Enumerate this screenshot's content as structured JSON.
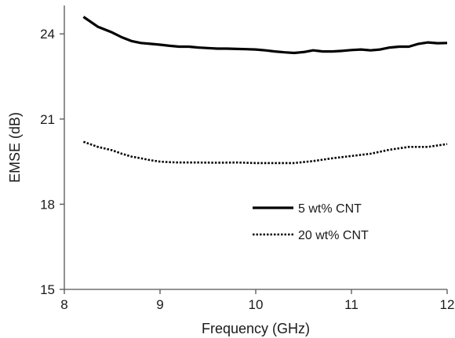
{
  "chart_data": {
    "type": "line",
    "xlabel": "Frequency (GHz)",
    "ylabel": "EMSE (dB)",
    "xlim": [
      8,
      12
    ],
    "ylim": [
      15,
      25
    ],
    "xticks": [
      8,
      9,
      10,
      11,
      12
    ],
    "yticks": [
      15,
      18,
      21,
      24
    ],
    "xtick_labels": [
      "8",
      "9",
      "10",
      "11",
      "12"
    ],
    "ytick_labels": [
      "15",
      "18",
      "21",
      "24"
    ],
    "grid": false,
    "legend_position": "lower-right",
    "series": [
      {
        "name": "5 wt% CNT",
        "style": "solid",
        "color": "#000000",
        "x": [
          8.2,
          8.35,
          8.5,
          8.6,
          8.7,
          8.8,
          8.9,
          9.0,
          9.1,
          9.2,
          9.3,
          9.4,
          9.5,
          9.6,
          9.7,
          9.8,
          9.9,
          10.0,
          10.1,
          10.2,
          10.3,
          10.4,
          10.5,
          10.6,
          10.7,
          10.8,
          10.9,
          11.0,
          11.1,
          11.2,
          11.3,
          11.4,
          11.5,
          11.6,
          11.7,
          11.8,
          11.9,
          12.0
        ],
        "y": [
          24.6,
          24.25,
          24.05,
          23.88,
          23.75,
          23.68,
          23.65,
          23.62,
          23.58,
          23.55,
          23.55,
          23.52,
          23.5,
          23.48,
          23.48,
          23.47,
          23.46,
          23.45,
          23.42,
          23.38,
          23.35,
          23.33,
          23.36,
          23.42,
          23.38,
          23.38,
          23.4,
          23.43,
          23.45,
          23.42,
          23.45,
          23.52,
          23.55,
          23.55,
          23.65,
          23.7,
          23.67,
          23.68
        ]
      },
      {
        "name": "20 wt% CNT",
        "style": "dotted",
        "color": "#000000",
        "x": [
          8.2,
          8.35,
          8.5,
          8.6,
          8.7,
          8.8,
          8.9,
          9.0,
          9.1,
          9.2,
          9.4,
          9.6,
          9.8,
          10.0,
          10.2,
          10.4,
          10.6,
          10.8,
          11.0,
          11.2,
          11.4,
          11.6,
          11.8,
          12.0
        ],
        "y": [
          20.2,
          20.02,
          19.9,
          19.78,
          19.68,
          19.62,
          19.55,
          19.5,
          19.48,
          19.47,
          19.47,
          19.46,
          19.47,
          19.45,
          19.45,
          19.45,
          19.52,
          19.62,
          19.7,
          19.78,
          19.92,
          20.02,
          20.02,
          20.12
        ]
      }
    ]
  }
}
